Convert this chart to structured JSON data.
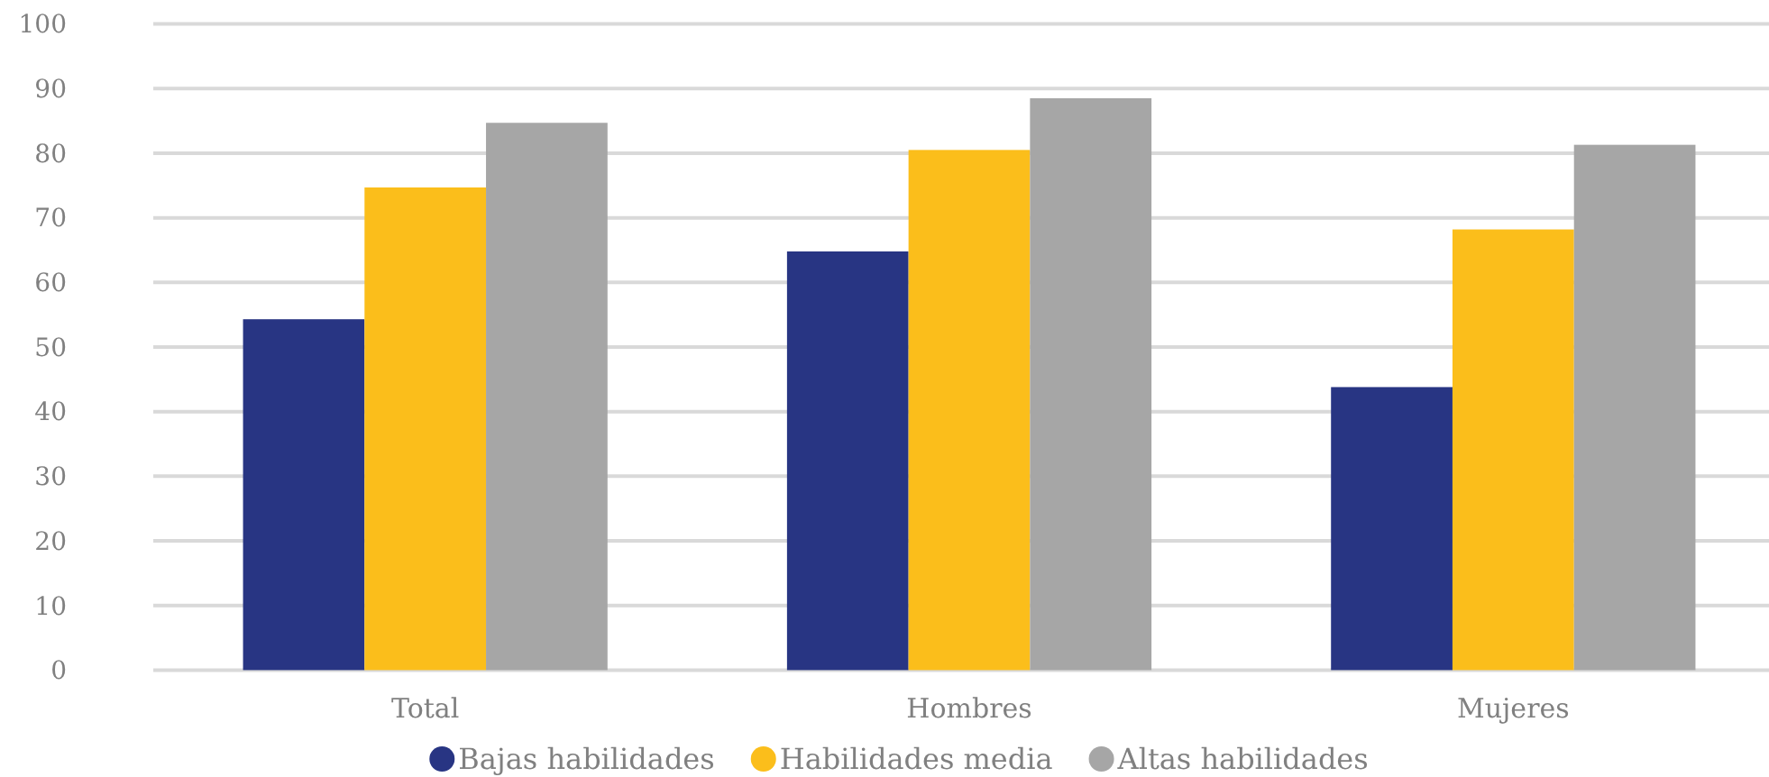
{
  "chart_data": {
    "type": "bar",
    "categories": [
      "Total",
      "Hombres",
      "Mujeres"
    ],
    "series": [
      {
        "name": "Bajas habilidades",
        "color": "#283583",
        "values": [
          54.3,
          64.8,
          43.8
        ]
      },
      {
        "name": "Habilidades media",
        "color": "#fbbe1b",
        "values": [
          74.7,
          80.5,
          68.2
        ]
      },
      {
        "name": "Altas habilidades",
        "color": "#a6a6a6",
        "values": [
          84.7,
          88.5,
          81.3
        ]
      }
    ],
    "ylim": [
      0,
      100
    ],
    "yticks": [
      0,
      10,
      20,
      30,
      40,
      50,
      60,
      70,
      80,
      90,
      100
    ],
    "grid": "y",
    "legend": "bottom"
  }
}
